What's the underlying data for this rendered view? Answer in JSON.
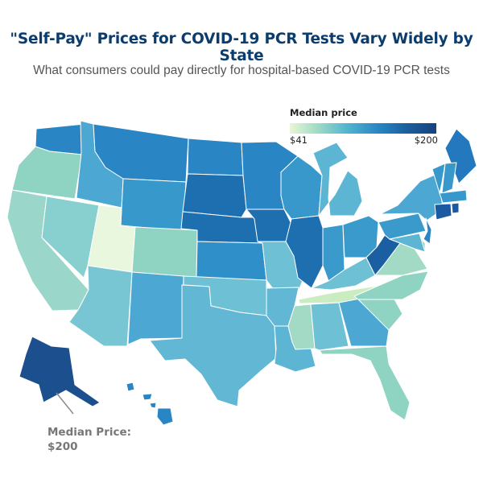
{
  "title": "\"Self-Pay\" Prices for COVID-19 PCR Tests Vary Widely by State",
  "subtitle": "What consumers could pay directly for hospital-based COVID-19 PCR tests",
  "legend": {
    "title": "Median price",
    "min_label": "$41",
    "max_label": "$200",
    "min_value": 41,
    "max_value": 200,
    "colors": [
      "#e9f6d6",
      "#9bd9c5",
      "#4fb3d1",
      "#2b86c3",
      "#1b5e9e",
      "#16437f"
    ]
  },
  "callout": {
    "label": "Median Price:",
    "value": "$200",
    "state": "AK"
  },
  "state_colors": {
    "WA": "#2a85c4",
    "OR": "#8fd3c3",
    "CA": "#9bd6cb",
    "NV": "#88cfd0",
    "ID": "#4ca7d3",
    "MT": "#2a85c4",
    "WY": "#3798cb",
    "UT": "#eaf7df",
    "AZ": "#78c6d4",
    "CO": "#8fd3c3",
    "NM": "#4ca7d3",
    "ND": "#2a85c4",
    "SD": "#1e6fb0",
    "NE": "#1e6fb0",
    "KS": "#2f8fc8",
    "OK": "#6ec0d4",
    "TX": "#62b7d4",
    "MN": "#2a85c4",
    "IA": "#1e6fb0",
    "MO": "#6ec0d4",
    "AR": "#62b7d4",
    "LA": "#5db5d4",
    "WI": "#3898cb",
    "IL": "#1e6fb0",
    "MI": "#5db5d4",
    "IN": "#3a9acb",
    "OH": "#3a9acb",
    "KY": "#6ec0d4",
    "TN": "#c9ecc0",
    "MS": "#a2dac6",
    "AL": "#6ec0d4",
    "GA": "#4ca7d3",
    "FL": "#8fd3c3",
    "SC": "#8fd3c3",
    "NC": "#8fd3c3",
    "VA": "#a2dac6",
    "WV": "#1a5fa2",
    "PA": "#3a9acb",
    "NY": "#4ca7d3",
    "ME": "#2478bd",
    "VT": "#3898cb",
    "NH": "#3898cb",
    "MA": "#3898cb",
    "CT": "#1a5aa0",
    "RI": "#1a5aa0",
    "NJ": "#2a85c4",
    "DE": "#8fd3c3",
    "MD": "#5db5d4",
    "AK": "#1b4f8e",
    "HI": "#2a85c4"
  }
}
